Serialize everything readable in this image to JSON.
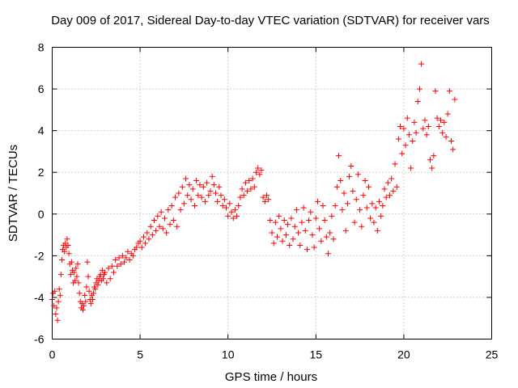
{
  "chart_data": {
    "type": "scatter",
    "title": "Day 009 of 2017, Sidereal Day-to-day VTEC variation (SDTVAR) for receiver vars",
    "xlabel": "GPS time / hours",
    "ylabel": "SDTVAR / TECUs",
    "xlim": [
      0,
      25
    ],
    "ylim": [
      -6,
      8
    ],
    "xticks": [
      0,
      5,
      10,
      15,
      20,
      25
    ],
    "yticks": [
      -6,
      -4,
      -2,
      0,
      2,
      4,
      6,
      8
    ],
    "grid": true,
    "marker": "+",
    "marker_color": "#ff0000",
    "series": [
      {
        "name": "SDTVAR",
        "points": [
          [
            0.0,
            -4.1
          ],
          [
            0.05,
            -3.8
          ],
          [
            0.1,
            -4.4
          ],
          [
            0.15,
            -3.7
          ],
          [
            0.2,
            -4.8
          ],
          [
            0.25,
            -4.5
          ],
          [
            0.3,
            -5.1
          ],
          [
            0.35,
            -4.2
          ],
          [
            0.4,
            -3.6
          ],
          [
            0.45,
            -3.9
          ],
          [
            0.5,
            -2.9
          ],
          [
            0.55,
            -2.2
          ],
          [
            0.6,
            -1.7
          ],
          [
            0.65,
            -1.5
          ],
          [
            0.7,
            -1.8
          ],
          [
            0.75,
            -1.4
          ],
          [
            0.8,
            -1.6
          ],
          [
            0.85,
            -1.2
          ],
          [
            0.9,
            -1.5
          ],
          [
            0.95,
            -1.9
          ],
          [
            1.0,
            -2.4
          ],
          [
            1.05,
            -2.9
          ],
          [
            1.1,
            -2.3
          ],
          [
            1.15,
            -2.7
          ],
          [
            1.2,
            -3.3
          ],
          [
            1.25,
            -2.8
          ],
          [
            1.3,
            -3.2
          ],
          [
            1.35,
            -2.6
          ],
          [
            1.4,
            -3.0
          ],
          [
            1.45,
            -2.4
          ],
          [
            1.5,
            -3.3
          ],
          [
            1.55,
            -3.8
          ],
          [
            1.6,
            -4.2
          ],
          [
            1.65,
            -4.5
          ],
          [
            1.7,
            -4.3
          ],
          [
            1.75,
            -4.6
          ],
          [
            1.8,
            -4.4
          ],
          [
            1.85,
            -3.9
          ],
          [
            1.9,
            -4.2
          ],
          [
            1.95,
            -3.5
          ],
          [
            2.0,
            -2.3
          ],
          [
            2.05,
            -3.0
          ],
          [
            2.1,
            -3.7
          ],
          [
            2.15,
            -4.1
          ],
          [
            2.2,
            -4.3
          ],
          [
            2.25,
            -3.9
          ],
          [
            2.3,
            -4.1
          ],
          [
            2.35,
            -3.8
          ],
          [
            2.4,
            -3.5
          ],
          [
            2.45,
            -3.6
          ],
          [
            2.5,
            -3.3
          ],
          [
            2.55,
            -3.1
          ],
          [
            2.6,
            -3.4
          ],
          [
            2.65,
            -3.2
          ],
          [
            2.7,
            -3.0
          ],
          [
            2.75,
            -2.9
          ],
          [
            2.8,
            -3.2
          ],
          [
            2.85,
            -2.7
          ],
          [
            2.9,
            -3.1
          ],
          [
            2.95,
            -2.9
          ],
          [
            3.0,
            -2.8
          ],
          [
            3.1,
            -3.3
          ],
          [
            3.2,
            -2.6
          ],
          [
            3.3,
            -3.1
          ],
          [
            3.4,
            -2.5
          ],
          [
            3.5,
            -2.8
          ],
          [
            3.6,
            -2.2
          ],
          [
            3.7,
            -2.5
          ],
          [
            3.8,
            -2.1
          ],
          [
            3.9,
            -2.4
          ],
          [
            4.0,
            -2.0
          ],
          [
            4.1,
            -2.3
          ],
          [
            4.2,
            -2.1
          ],
          [
            4.3,
            -1.8
          ],
          [
            4.4,
            -2.2
          ],
          [
            4.5,
            -1.9
          ],
          [
            4.6,
            -2.0
          ],
          [
            4.7,
            -1.7
          ],
          [
            4.8,
            -1.6
          ],
          [
            4.9,
            -1.4
          ],
          [
            5.0,
            -1.3
          ],
          [
            5.1,
            -1.6
          ],
          [
            5.2,
            -1.1
          ],
          [
            5.3,
            -1.4
          ],
          [
            5.4,
            -0.9
          ],
          [
            5.5,
            -1.2
          ],
          [
            5.6,
            -0.6
          ],
          [
            5.7,
            -1.0
          ],
          [
            5.8,
            -0.3
          ],
          [
            5.9,
            -0.8
          ],
          [
            6.0,
            -0.1
          ],
          [
            6.1,
            -0.6
          ],
          [
            6.2,
            0.1
          ],
          [
            6.3,
            -0.7
          ],
          [
            6.4,
            -0.2
          ],
          [
            6.5,
            -0.9
          ],
          [
            6.6,
            0.2
          ],
          [
            6.7,
            -0.5
          ],
          [
            6.8,
            0.4
          ],
          [
            6.9,
            -0.3
          ],
          [
            7.0,
            0.8
          ],
          [
            7.1,
            -0.6
          ],
          [
            7.2,
            1.0
          ],
          [
            7.3,
            0.2
          ],
          [
            7.4,
            1.3
          ],
          [
            7.5,
            0.5
          ],
          [
            7.6,
            1.7
          ],
          [
            7.7,
            0.9
          ],
          [
            7.8,
            1.4
          ],
          [
            7.9,
            0.7
          ],
          [
            8.0,
            1.2
          ],
          [
            8.1,
            0.4
          ],
          [
            8.2,
            1.6
          ],
          [
            8.3,
            0.9
          ],
          [
            8.4,
            1.4
          ],
          [
            8.5,
            0.8
          ],
          [
            8.6,
            1.3
          ],
          [
            8.7,
            0.6
          ],
          [
            8.8,
            1.5
          ],
          [
            8.9,
            0.9
          ],
          [
            9.0,
            1.1
          ],
          [
            9.1,
            1.8
          ],
          [
            9.2,
            1.4
          ],
          [
            9.3,
            1.0
          ],
          [
            9.4,
            0.6
          ],
          [
            9.5,
            1.3
          ],
          [
            9.6,
            0.9
          ],
          [
            9.7,
            0.4
          ],
          [
            9.8,
            0.7
          ],
          [
            9.9,
            0.3
          ],
          [
            10.0,
            -0.1
          ],
          [
            10.1,
            0.5
          ],
          [
            10.2,
            0.1
          ],
          [
            10.3,
            -0.2
          ],
          [
            10.4,
            0.2
          ],
          [
            10.5,
            -0.1
          ],
          [
            10.6,
            0.4
          ],
          [
            10.7,
            0.8
          ],
          [
            10.8,
            1.2
          ],
          [
            10.9,
            0.9
          ],
          [
            11.0,
            1.5
          ],
          [
            11.1,
            1.1
          ],
          [
            11.2,
            1.6
          ],
          [
            11.3,
            1.2
          ],
          [
            11.4,
            1.7
          ],
          [
            11.5,
            1.3
          ],
          [
            11.6,
            2.0
          ],
          [
            11.7,
            2.2
          ],
          [
            11.8,
            1.9
          ],
          [
            11.9,
            2.1
          ],
          [
            12.0,
            0.8
          ],
          [
            12.1,
            0.6
          ],
          [
            12.2,
            0.9
          ],
          [
            12.3,
            0.7
          ],
          [
            12.4,
            -0.3
          ],
          [
            12.5,
            -0.9
          ],
          [
            12.6,
            -1.4
          ],
          [
            12.7,
            -0.4
          ],
          [
            12.8,
            -1.1
          ],
          [
            12.9,
            -0.1
          ],
          [
            13.0,
            -0.7
          ],
          [
            13.1,
            -1.3
          ],
          [
            13.2,
            -0.3
          ],
          [
            13.3,
            -1.0
          ],
          [
            13.4,
            -0.5
          ],
          [
            13.5,
            -1.5
          ],
          [
            13.6,
            -0.2
          ],
          [
            13.7,
            -1.2
          ],
          [
            13.8,
            -0.6
          ],
          [
            13.9,
            0.2
          ],
          [
            14.0,
            -0.9
          ],
          [
            14.1,
            -1.5
          ],
          [
            14.2,
            -0.4
          ],
          [
            14.3,
            0.3
          ],
          [
            14.4,
            -0.8
          ],
          [
            14.5,
            -1.7
          ],
          [
            14.6,
            -0.3
          ],
          [
            14.7,
            0.1
          ],
          [
            14.8,
            -1.0
          ],
          [
            14.9,
            -1.6
          ],
          [
            15.0,
            -0.2
          ],
          [
            15.1,
            0.6
          ],
          [
            15.2,
            -0.7
          ],
          [
            15.3,
            -1.3
          ],
          [
            15.4,
            0.4
          ],
          [
            15.5,
            -0.3
          ],
          [
            15.6,
            -1.1
          ],
          [
            15.7,
            -1.9
          ],
          [
            15.8,
            -0.9
          ],
          [
            15.9,
            -0.1
          ],
          [
            16.0,
            -1.2
          ],
          [
            16.1,
            0.4
          ],
          [
            16.2,
            1.3
          ],
          [
            16.3,
            2.8
          ],
          [
            16.4,
            1.6
          ],
          [
            16.5,
            0.2
          ],
          [
            16.6,
            1.0
          ],
          [
            16.7,
            -0.8
          ],
          [
            16.8,
            0.5
          ],
          [
            16.9,
            1.8
          ],
          [
            17.0,
            2.3
          ],
          [
            17.1,
            1.1
          ],
          [
            17.2,
            -0.4
          ],
          [
            17.3,
            0.7
          ],
          [
            17.4,
            1.9
          ],
          [
            17.5,
            0.2
          ],
          [
            17.6,
            -0.6
          ],
          [
            17.7,
            0.9
          ],
          [
            17.8,
            1.6
          ],
          [
            17.9,
            0.3
          ],
          [
            18.0,
            1.3
          ],
          [
            18.1,
            -0.2
          ],
          [
            18.2,
            0.5
          ],
          [
            18.3,
            -0.4
          ],
          [
            18.4,
            0.3
          ],
          [
            18.5,
            -0.8
          ],
          [
            18.6,
            0.6
          ],
          [
            18.7,
            -0.1
          ],
          [
            18.8,
            0.4
          ],
          [
            18.9,
            1.2
          ],
          [
            19.0,
            0.8
          ],
          [
            19.1,
            1.5
          ],
          [
            19.2,
            0.9
          ],
          [
            19.3,
            1.7
          ],
          [
            19.4,
            1.1
          ],
          [
            19.5,
            2.4
          ],
          [
            19.6,
            1.3
          ],
          [
            19.7,
            3.6
          ],
          [
            19.8,
            4.2
          ],
          [
            19.9,
            2.9
          ],
          [
            20.0,
            4.1
          ],
          [
            20.1,
            3.3
          ],
          [
            20.2,
            4.6
          ],
          [
            20.3,
            3.8
          ],
          [
            20.4,
            2.2
          ],
          [
            20.5,
            3.5
          ],
          [
            20.6,
            4.4
          ],
          [
            20.7,
            3.9
          ],
          [
            20.8,
            5.4
          ],
          [
            20.9,
            6.0
          ],
          [
            21.0,
            7.2
          ],
          [
            21.1,
            4.1
          ],
          [
            21.2,
            4.5
          ],
          [
            21.3,
            3.8
          ],
          [
            21.4,
            4.2
          ],
          [
            21.5,
            2.6
          ],
          [
            21.6,
            2.2
          ],
          [
            21.7,
            2.8
          ],
          [
            21.8,
            5.9
          ],
          [
            21.9,
            4.6
          ],
          [
            22.0,
            4.2
          ],
          [
            22.1,
            4.5
          ],
          [
            22.2,
            3.9
          ],
          [
            22.3,
            4.4
          ],
          [
            22.4,
            3.7
          ],
          [
            22.5,
            4.8
          ],
          [
            22.6,
            5.9
          ],
          [
            22.7,
            3.5
          ],
          [
            22.8,
            3.1
          ],
          [
            22.9,
            5.5
          ]
        ]
      }
    ]
  }
}
